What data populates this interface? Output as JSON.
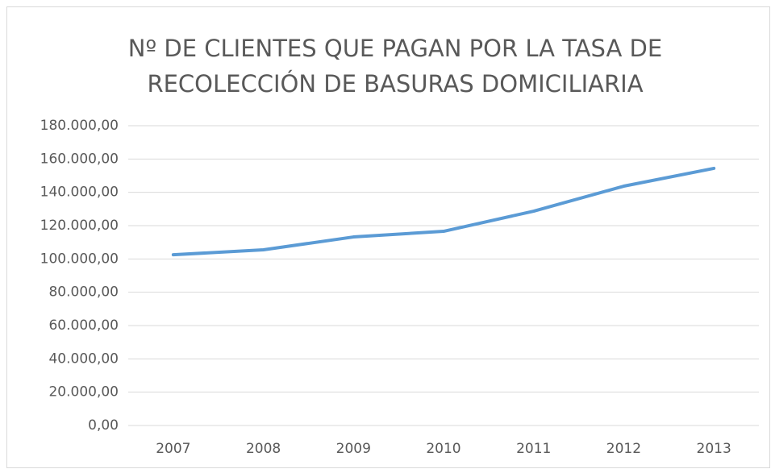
{
  "chart_data": {
    "type": "line",
    "title": "Nº DE CLIENTES QUE PAGAN POR LA TASA DE RECOLECCIÓN DE BASURAS DOMICILIARIA",
    "categories": [
      "2007",
      "2008",
      "2009",
      "2010",
      "2011",
      "2012",
      "2013"
    ],
    "series": [
      {
        "name": "Clientes",
        "color": "#5b9bd5",
        "values": [
          102500,
          105500,
          113200,
          116600,
          128700,
          143700,
          154400
        ]
      }
    ],
    "ylim": [
      0,
      180000
    ],
    "yticks": [
      {
        "value": 0,
        "label": "0,00"
      },
      {
        "value": 20000,
        "label": "20.000,00"
      },
      {
        "value": 40000,
        "label": "40.000,00"
      },
      {
        "value": 60000,
        "label": "60.000,00"
      },
      {
        "value": 80000,
        "label": "80.000,00"
      },
      {
        "value": 100000,
        "label": "100.000,00"
      },
      {
        "value": 120000,
        "label": "120.000,00"
      },
      {
        "value": 140000,
        "label": "140.000,00"
      },
      {
        "value": 160000,
        "label": "160.000,00"
      },
      {
        "value": 180000,
        "label": "180.000,00"
      }
    ],
    "grid": true
  }
}
